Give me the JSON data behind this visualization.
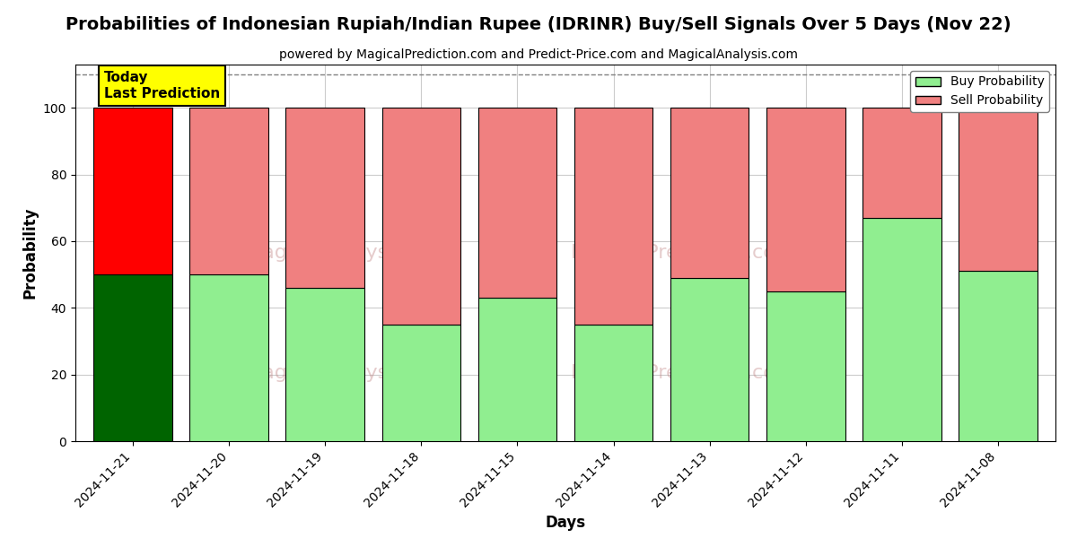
{
  "title": "Probabilities of Indonesian Rupiah/Indian Rupee (IDRINR) Buy/Sell Signals Over 5 Days (Nov 22)",
  "subtitle": "powered by MagicalPrediction.com and Predict-Price.com and MagicalAnalysis.com",
  "xlabel": "Days",
  "ylabel": "Probability",
  "categories": [
    "2024-11-21",
    "2024-11-20",
    "2024-11-19",
    "2024-11-18",
    "2024-11-15",
    "2024-11-14",
    "2024-11-13",
    "2024-11-12",
    "2024-11-11",
    "2024-11-08"
  ],
  "buy_values": [
    50,
    50,
    46,
    35,
    43,
    35,
    49,
    45,
    67,
    51
  ],
  "sell_values": [
    50,
    50,
    54,
    65,
    57,
    65,
    51,
    55,
    33,
    49
  ],
  "today_buy_color": "#006400",
  "today_sell_color": "#FF0000",
  "buy_color": "#90EE90",
  "sell_color": "#F08080",
  "today_annotation": "Today\nLast Prediction",
  "today_annotation_bg": "#FFFF00",
  "ylim": [
    0,
    113
  ],
  "yticks": [
    0,
    20,
    40,
    60,
    80,
    100
  ],
  "dashed_line_y": 110,
  "legend_buy_label": "Buy Probability",
  "legend_sell_label": "Sell Probability",
  "bar_edgecolor": "#000000",
  "bar_linewidth": 0.8,
  "grid_color": "#cccccc",
  "background_color": "#ffffff",
  "title_fontsize": 14,
  "subtitle_fontsize": 10,
  "axis_label_fontsize": 12
}
